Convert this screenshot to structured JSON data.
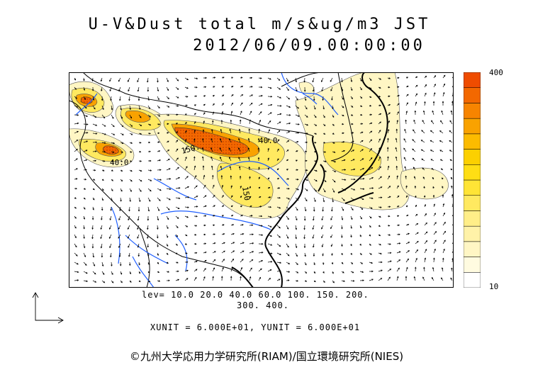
{
  "title": {
    "line1": "U-V&Dust total m/s&ug/m3 JST",
    "line2": "2012/06/09.00:00:00"
  },
  "contour_labels": [
    "40.0",
    "40.0",
    "150.",
    "150"
  ],
  "colorbar": {
    "max_label": "400",
    "min_label": "10",
    "colors": [
      "#ffffff",
      "#fffbe0",
      "#fff6c4",
      "#fff2a8",
      "#ffee88",
      "#ffe960",
      "#ffe436",
      "#ffde14",
      "#fcd000",
      "#fcbb00",
      "#f9a200",
      "#f78400",
      "#f36800",
      "#ef4c00"
    ]
  },
  "levels": {
    "line1": "lev= 10.0 20.0 40.0 60.0 100. 150. 200.",
    "line2": "300. 400."
  },
  "units": "XUNIT = 6.000E+01, YUNIT = 6.000E+01",
  "copyright": "©九州大学応用力学研究所(RIAM)/国立環境研究所(NIES)"
}
